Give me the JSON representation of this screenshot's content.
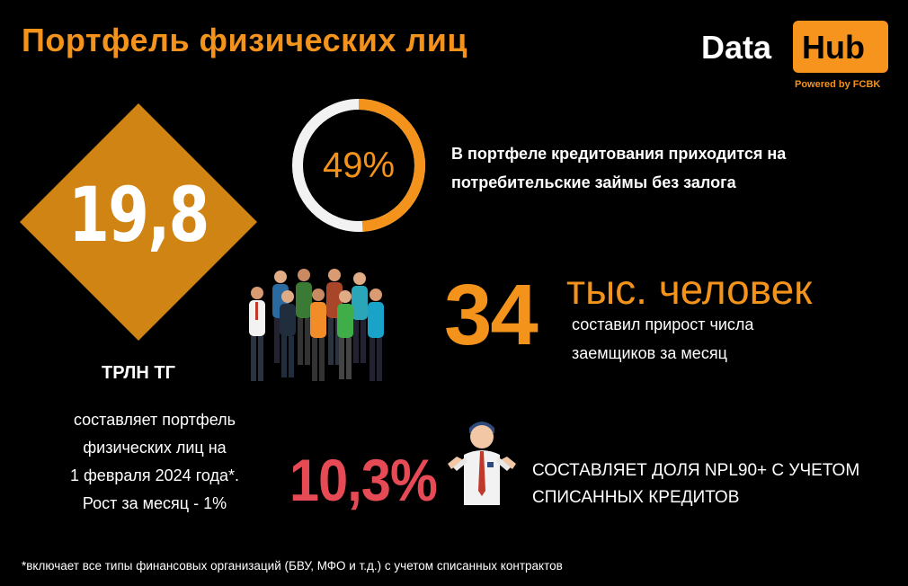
{
  "header": {
    "title": "Портфель физических лиц"
  },
  "logo": {
    "word1": "Data",
    "word2": "Hub",
    "tagline": "Powered by FCBK"
  },
  "portfolio": {
    "value": "19,8",
    "unit": "ТРЛН ТГ",
    "description_lines": [
      "составляет портфель",
      "физических лиц на",
      "1 февраля 2024 года*.",
      "Рост за месяц - 1%"
    ]
  },
  "unsecured_share": {
    "percent_label": "49%",
    "percent_value": 49,
    "text_lines": [
      "В портфеле кредитования приходится на",
      "потребительские займы без залога"
    ]
  },
  "borrowers": {
    "value": "34",
    "unit": "тыс. человек",
    "text_lines": [
      "составил прирост числа",
      "заемщиков за месяц"
    ]
  },
  "npl": {
    "value": "10,3%",
    "text_lines": [
      "СОСТАВЛЯЕТ ДОЛЯ NPL90+ С УЧЕТОМ",
      "СПИСАННЫХ КРЕДИТОВ"
    ]
  },
  "footnote": "*включает все типы финансовых организаций (БВУ, МФО и т.д.) с учетом списанных контрактов",
  "colors": {
    "accent": "#f3931c",
    "diamond": "#cf8414",
    "npl": "#e64a55",
    "ring_track": "#f2f2f2"
  },
  "icons": {
    "people": "people-group-icon",
    "man": "shrugging-man-icon"
  }
}
